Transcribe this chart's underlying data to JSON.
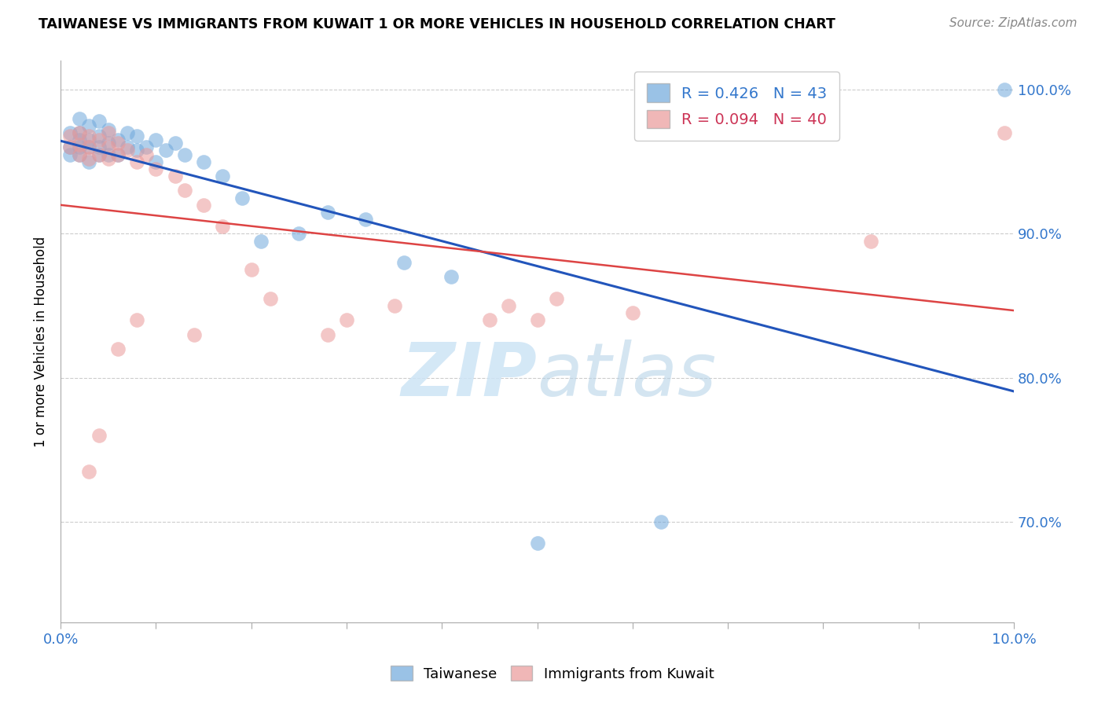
{
  "title": "TAIWANESE VS IMMIGRANTS FROM KUWAIT 1 OR MORE VEHICLES IN HOUSEHOLD CORRELATION CHART",
  "source": "Source: ZipAtlas.com",
  "ylabel": "1 or more Vehicles in Household",
  "blue_color": "#6fa8dc",
  "pink_color": "#ea9999",
  "blue_line_color": "#2255bb",
  "pink_line_color": "#dd4444",
  "tw_x": [
    0.001,
    0.001,
    0.001,
    0.002,
    0.002,
    0.002,
    0.002,
    0.002,
    0.003,
    0.003,
    0.003,
    0.003,
    0.004,
    0.004,
    0.004,
    0.004,
    0.005,
    0.005,
    0.005,
    0.006,
    0.006,
    0.007,
    0.007,
    0.008,
    0.008,
    0.009,
    0.01,
    0.01,
    0.011,
    0.012,
    0.013,
    0.015,
    0.017,
    0.019,
    0.021,
    0.025,
    0.028,
    0.032,
    0.036,
    0.041,
    0.05,
    0.063,
    0.099
  ],
  "tw_y": [
    0.955,
    0.96,
    0.97,
    0.955,
    0.96,
    0.965,
    0.97,
    0.98,
    0.95,
    0.96,
    0.965,
    0.975,
    0.955,
    0.96,
    0.968,
    0.978,
    0.955,
    0.963,
    0.972,
    0.955,
    0.965,
    0.96,
    0.97,
    0.958,
    0.968,
    0.96,
    0.95,
    0.965,
    0.958,
    0.963,
    0.955,
    0.95,
    0.94,
    0.925,
    0.895,
    0.9,
    0.915,
    0.91,
    0.88,
    0.87,
    0.685,
    0.7,
    1.0
  ],
  "kw_x": [
    0.001,
    0.001,
    0.002,
    0.002,
    0.002,
    0.003,
    0.003,
    0.003,
    0.004,
    0.004,
    0.005,
    0.005,
    0.005,
    0.006,
    0.006,
    0.007,
    0.008,
    0.009,
    0.01,
    0.012,
    0.013,
    0.015,
    0.017,
    0.02,
    0.022,
    0.028,
    0.03,
    0.035,
    0.045,
    0.047,
    0.05,
    0.052,
    0.06,
    0.085,
    0.099,
    0.003,
    0.004,
    0.006,
    0.008,
    0.014
  ],
  "kw_y": [
    0.96,
    0.968,
    0.955,
    0.962,
    0.97,
    0.952,
    0.96,
    0.968,
    0.955,
    0.965,
    0.952,
    0.96,
    0.97,
    0.955,
    0.963,
    0.958,
    0.95,
    0.955,
    0.945,
    0.94,
    0.93,
    0.92,
    0.905,
    0.875,
    0.855,
    0.83,
    0.84,
    0.85,
    0.84,
    0.85,
    0.84,
    0.855,
    0.845,
    0.895,
    0.97,
    0.735,
    0.76,
    0.82,
    0.84,
    0.83
  ],
  "xlim": [
    0.0,
    0.1
  ],
  "ylim": [
    0.63,
    1.02
  ],
  "yticks": [
    0.7,
    0.8,
    0.9,
    1.0
  ],
  "ytick_labels": [
    "70.0%",
    "80.0%",
    "90.0%",
    "100.0%"
  ],
  "xticks": [
    0.0,
    0.01,
    0.02,
    0.03,
    0.04,
    0.05,
    0.06,
    0.07,
    0.08,
    0.09,
    0.1
  ],
  "grid_color": "#cccccc",
  "watermark_color": "#cde4f5"
}
